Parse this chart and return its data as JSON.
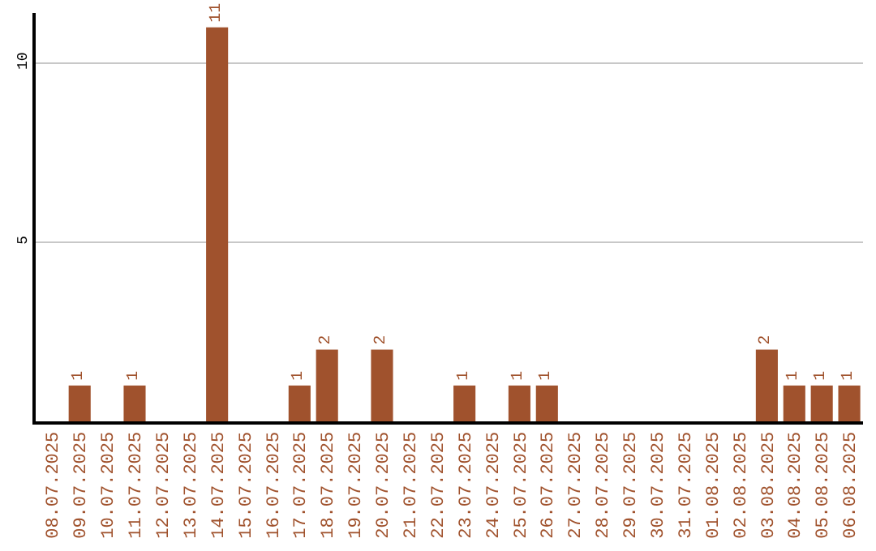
{
  "chart_data": {
    "type": "bar",
    "categories": [
      "08.07.2025",
      "09.07.2025",
      "10.07.2025",
      "11.07.2025",
      "12.07.2025",
      "13.07.2025",
      "14.07.2025",
      "15.07.2025",
      "16.07.2025",
      "17.07.2025",
      "18.07.2025",
      "19.07.2025",
      "20.07.2025",
      "21.07.2025",
      "22.07.2025",
      "23.07.2025",
      "24.07.2025",
      "25.07.2025",
      "26.07.2025",
      "27.07.2025",
      "28.07.2025",
      "29.07.2025",
      "30.07.2025",
      "31.07.2025",
      "01.08.2025",
      "02.08.2025",
      "03.08.2025",
      "04.08.2025",
      "05.08.2025",
      "06.08.2025"
    ],
    "values": [
      0,
      1,
      0,
      1,
      0,
      0,
      11,
      0,
      0,
      1,
      2,
      0,
      2,
      0,
      0,
      1,
      0,
      1,
      1,
      0,
      0,
      0,
      0,
      0,
      0,
      0,
      2,
      1,
      1,
      1
    ],
    "value_labels": [
      null,
      "1",
      null,
      "1",
      null,
      null,
      "11",
      null,
      null,
      "1",
      "2",
      null,
      "2",
      null,
      null,
      "1",
      null,
      "1",
      "1",
      null,
      null,
      null,
      null,
      null,
      null,
      null,
      "2",
      "1",
      "1",
      "1"
    ],
    "color": "#a0522d",
    "ylim": [
      0,
      11.4
    ],
    "yticks": [
      5,
      10
    ],
    "grid": "y",
    "legend": false
  }
}
